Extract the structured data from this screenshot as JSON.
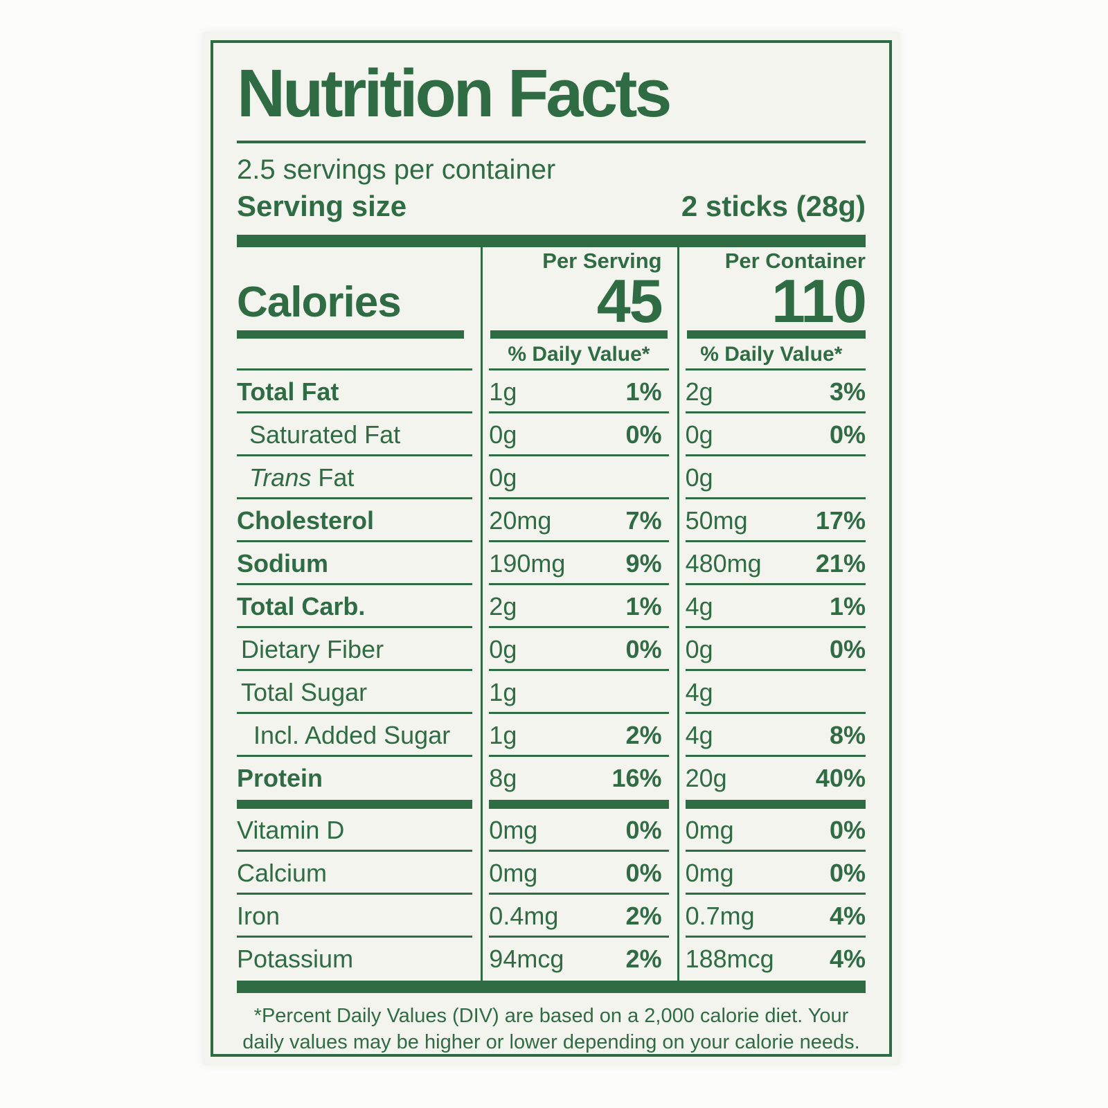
{
  "title": "Nutrition Facts",
  "servings_line": "2.5 servings per container",
  "serving_size": {
    "label": "Serving size",
    "value": "2 sticks (28g)"
  },
  "calories": {
    "label": "Calories",
    "per_serving_header": "Per Serving",
    "per_container_header": "Per Container",
    "per_serving": "45",
    "per_container": "110",
    "dv_header": "% Daily Value*"
  },
  "rows": [
    {
      "name": "Total Fat",
      "s_amt": "1g",
      "s_dv": "1%",
      "c_amt": "2g",
      "c_dv": "3%"
    },
    {
      "name": "Saturated Fat",
      "s_amt": "0g",
      "s_dv": "0%",
      "c_amt": "0g",
      "c_dv": "0%"
    },
    {
      "italic": "Trans",
      "name": " Fat",
      "s_amt": "0g",
      "s_dv": "",
      "c_amt": "0g",
      "c_dv": ""
    },
    {
      "name": "Cholesterol",
      "s_amt": "20mg",
      "s_dv": "7%",
      "c_amt": "50mg",
      "c_dv": "17%"
    },
    {
      "name": "Sodium",
      "s_amt": "190mg",
      "s_dv": "9%",
      "c_amt": "480mg",
      "c_dv": "21%"
    },
    {
      "name": "Total Carb.",
      "s_amt": "2g",
      "s_dv": "1%",
      "c_amt": "4g",
      "c_dv": "1%"
    },
    {
      "name": "Dietary Fiber",
      "s_amt": "0g",
      "s_dv": "0%",
      "c_amt": "0g",
      "c_dv": "0%"
    },
    {
      "name": "Total Sugar",
      "s_amt": "1g",
      "s_dv": "",
      "c_amt": "4g",
      "c_dv": ""
    },
    {
      "name": "Incl. Added Sugar",
      "s_amt": "1g",
      "s_dv": "2%",
      "c_amt": "4g",
      "c_dv": "8%"
    },
    {
      "name": "Protein",
      "s_amt": "8g",
      "s_dv": "16%",
      "c_amt": "20g",
      "c_dv": "40%"
    },
    {
      "name": "Vitamin D",
      "s_amt": "0mg",
      "s_dv": "0%",
      "c_amt": "0mg",
      "c_dv": "0%"
    },
    {
      "name": "Calcium",
      "s_amt": "0mg",
      "s_dv": "0%",
      "c_amt": "0mg",
      "c_dv": "0%"
    },
    {
      "name": "Iron",
      "s_amt": "0.4mg",
      "s_dv": "2%",
      "c_amt": "0.7mg",
      "c_dv": "4%"
    },
    {
      "name": "Potassium",
      "s_amt": "94mcg",
      "s_dv": "2%",
      "c_amt": "188mcg",
      "c_dv": "4%"
    }
  ],
  "footnote": "*Percent Daily Values (DIV) are based on a 2,000 calorie diet. Your daily values may be higher or lower depending on your calorie needs.",
  "colors": {
    "green": "#2f6b43",
    "label_background": "#f4f4ef",
    "page_background": "#fcfcfa"
  }
}
